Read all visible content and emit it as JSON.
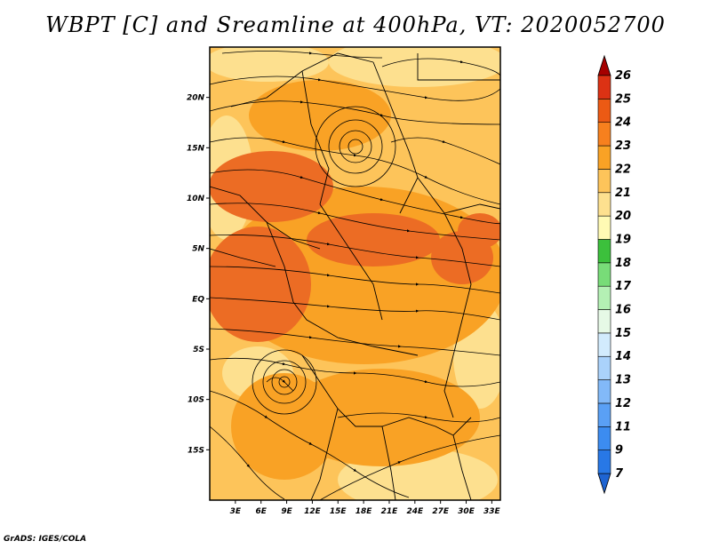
{
  "title": "WBPT [C] and Sreamline at 400hPa, VT: 2020052700",
  "credit": "GrADS: IGES/COLA",
  "map": {
    "lat_ticks": [
      "20N",
      "15N",
      "10N",
      "5N",
      "EQ",
      "5S",
      "10S",
      "15S"
    ],
    "lat_values": [
      20,
      15,
      10,
      5,
      0,
      -5,
      -10,
      -15
    ],
    "lon_ticks": [
      "3E",
      "6E",
      "9E",
      "12E",
      "15E",
      "18E",
      "21E",
      "24E",
      "27E",
      "30E",
      "33E"
    ],
    "lon_values": [
      3,
      6,
      9,
      12,
      15,
      18,
      21,
      24,
      27,
      30,
      33
    ],
    "lat_range": [
      -20,
      25
    ],
    "lon_range": [
      0,
      34
    ],
    "field_colors": {
      "base": "#fdc45a",
      "warm": "#f9a225",
      "hot": "#ec6c24",
      "light": "#fde08f"
    }
  },
  "colorbar": {
    "labels": [
      "7",
      "9",
      "11",
      "12",
      "13",
      "14",
      "15",
      "16",
      "17",
      "18",
      "19",
      "20",
      "21",
      "22",
      "23",
      "24",
      "25",
      "26"
    ],
    "colors": [
      "#1e64d2",
      "#2878e6",
      "#3c8cf0",
      "#5aa0f5",
      "#82b9f8",
      "#aad2fb",
      "#d2ebfd",
      "#e6f9e6",
      "#b4f0b4",
      "#78dc78",
      "#3cc03c",
      "#fffab4",
      "#fde08f",
      "#fdc45a",
      "#f9a225",
      "#f7801e",
      "#ec5a14",
      "#dc3214",
      "#c81a0a",
      "#a50000"
    ]
  }
}
